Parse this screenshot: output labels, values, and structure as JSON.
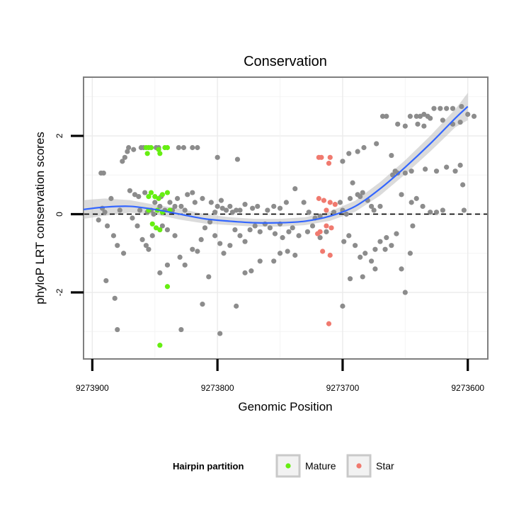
{
  "chart_data": {
    "type": "scatter",
    "title": "Conservation",
    "xlabel": "Genomic Position",
    "ylabel": "phyloP LRT conservation scores",
    "x_reversed": true,
    "xlim": [
      9273907,
      9273584
    ],
    "ylim": [
      -3.7,
      3.5
    ],
    "x_ticks": [
      9273900,
      9273800,
      9273700,
      9273600
    ],
    "x_tick_labels": [
      "9273900",
      "9273800",
      "9273700",
      "9273600"
    ],
    "y_ticks": [
      2,
      0,
      -2
    ],
    "y_tick_labels": [
      "2",
      "0",
      "-2"
    ],
    "grid": true,
    "reference_line": {
      "y": 0,
      "style": "dashed",
      "color": "#000000"
    },
    "legend": {
      "title": "Hairpin partition",
      "placement": "bottom",
      "entries": [
        {
          "label": "Mature",
          "color": "#66ee11"
        },
        {
          "label": "Star",
          "color": "#f07a6f"
        }
      ]
    },
    "colors": {
      "other": "#8c8c8c",
      "mature": "#66ee11",
      "star": "#f07a6f",
      "smooth_line": "#3366ff",
      "ribbon": "#bdbdbd"
    },
    "series": [
      {
        "group": "other",
        "points": [
          [
            9273893,
            1.05
          ],
          [
            9273891,
            1.05
          ],
          [
            9273892,
            0.15
          ],
          [
            9273890,
            0.05
          ],
          [
            9273895,
            -0.15
          ],
          [
            9273888,
            -0.3
          ],
          [
            9273883,
            -0.55
          ],
          [
            9273889,
            -1.7
          ],
          [
            9273882,
            -2.15
          ],
          [
            9273880,
            -2.95
          ],
          [
            9273885,
            0.4
          ],
          [
            9273878,
            0.1
          ],
          [
            9273880,
            -0.8
          ],
          [
            9273875,
            -1.0
          ],
          [
            9273876,
            1.35
          ],
          [
            9273874,
            1.45
          ],
          [
            9273872,
            1.6
          ],
          [
            9273871,
            1.7
          ],
          [
            9273867,
            1.65
          ],
          [
            9273861,
            1.7
          ],
          [
            9273859,
            1.7
          ],
          [
            9273855,
            1.7
          ],
          [
            9273849,
            1.7
          ],
          [
            9273847,
            1.7
          ],
          [
            9273831,
            1.7
          ],
          [
            9273827,
            1.7
          ],
          [
            9273820,
            1.7
          ],
          [
            9273816,
            1.7
          ],
          [
            9273870,
            0.6
          ],
          [
            9273866,
            0.5
          ],
          [
            9273863,
            0.45
          ],
          [
            9273858,
            0.55
          ],
          [
            9273862,
            0.1
          ],
          [
            9273856,
            0.05
          ],
          [
            9273853,
            0.1
          ],
          [
            9273851,
            0.0
          ],
          [
            9273850,
            0.3
          ],
          [
            9273846,
            0.2
          ],
          [
            9273845,
            0.45
          ],
          [
            9273842,
            0.1
          ],
          [
            9273838,
            0.3
          ],
          [
            9273836,
            0.1
          ],
          [
            9273834,
            0.2
          ],
          [
            9273832,
            0.4
          ],
          [
            9273829,
            0.2
          ],
          [
            9273826,
            0.1
          ],
          [
            9273824,
            0.5
          ],
          [
            9273820,
            0.55
          ],
          [
            9273818,
            0.3
          ],
          [
            9273812,
            0.4
          ],
          [
            9273805,
            0.3
          ],
          [
            9273800,
            0.2
          ],
          [
            9273797,
            0.35
          ],
          [
            9273793,
            0.1
          ],
          [
            9273790,
            0.2
          ],
          [
            9273785,
            0.1
          ],
          [
            9273778,
            0.25
          ],
          [
            9273772,
            0.15
          ],
          [
            9273768,
            0.2
          ],
          [
            9273760,
            0.1
          ],
          [
            9273755,
            0.2
          ],
          [
            9273750,
            0.15
          ],
          [
            9273745,
            0.3
          ],
          [
            9273738,
            0.65
          ],
          [
            9273731,
            0.3
          ],
          [
            9273727,
            0.05
          ],
          [
            9273722,
            -0.1
          ],
          [
            9273718,
            -0.05
          ],
          [
            9273868,
            -0.1
          ],
          [
            9273864,
            -0.3
          ],
          [
            9273860,
            -0.65
          ],
          [
            9273857,
            -0.8
          ],
          [
            9273855,
            -0.9
          ],
          [
            9273852,
            -0.55
          ],
          [
            9273844,
            -0.3
          ],
          [
            9273840,
            -0.4
          ],
          [
            9273834,
            -0.55
          ],
          [
            9273830,
            -1.1
          ],
          [
            9273826,
            -1.3
          ],
          [
            9273820,
            -0.9
          ],
          [
            9273816,
            -0.95
          ],
          [
            9273813,
            -0.65
          ],
          [
            9273810,
            -0.35
          ],
          [
            9273806,
            -0.2
          ],
          [
            9273802,
            -0.55
          ],
          [
            9273798,
            -0.75
          ],
          [
            9273795,
            -1.0
          ],
          [
            9273790,
            -0.8
          ],
          [
            9273786,
            -0.4
          ],
          [
            9273782,
            -0.55
          ],
          [
            9273778,
            -0.7
          ],
          [
            9273774,
            -0.4
          ],
          [
            9273770,
            -0.3
          ],
          [
            9273766,
            -0.45
          ],
          [
            9273762,
            -0.25
          ],
          [
            9273758,
            -0.35
          ],
          [
            9273754,
            -0.5
          ],
          [
            9273750,
            -0.25
          ],
          [
            9273748,
            -0.6
          ],
          [
            9273743,
            -0.45
          ],
          [
            9273740,
            -0.35
          ],
          [
            9273735,
            -0.55
          ],
          [
            9273728,
            -0.45
          ],
          [
            9273724,
            -0.3
          ],
          [
            9273718,
            -0.6
          ],
          [
            9273713,
            -0.45
          ],
          [
            9273846,
            -1.5
          ],
          [
            9273840,
            -1.3
          ],
          [
            9273829,
            -2.95
          ],
          [
            9273812,
            -2.3
          ],
          [
            9273807,
            -1.6
          ],
          [
            9273798,
            -3.05
          ],
          [
            9273785,
            -2.35
          ],
          [
            9273778,
            -1.5
          ],
          [
            9273773,
            -1.45
          ],
          [
            9273766,
            -1.2
          ],
          [
            9273755,
            -1.2
          ],
          [
            9273750,
            -1.0
          ],
          [
            9273744,
            -0.95
          ],
          [
            9273738,
            -1.05
          ],
          [
            9273802,
            0.05
          ],
          [
            9273796,
            0.15
          ],
          [
            9273788,
            0.05
          ],
          [
            9273782,
            0.1
          ],
          [
            9273800,
            1.45
          ],
          [
            9273784,
            1.4
          ],
          [
            9273707,
            0.05
          ],
          [
            9273702,
            0.3
          ],
          [
            9273700,
            0.1
          ],
          [
            9273697,
            0.0
          ],
          [
            9273694,
            0.4
          ],
          [
            9273692,
            0.8
          ],
          [
            9273688,
            0.5
          ],
          [
            9273686,
            0.45
          ],
          [
            9273684,
            0.55
          ],
          [
            9273680,
            0.35
          ],
          [
            9273677,
            0.2
          ],
          [
            9273670,
            0.2
          ],
          [
            9273675,
            0.1
          ],
          [
            9273699,
            -0.7
          ],
          [
            9273695,
            -0.55
          ],
          [
            9273690,
            -0.8
          ],
          [
            9273686,
            -1.1
          ],
          [
            9273682,
            -1.0
          ],
          [
            9273677,
            -1.2
          ],
          [
            9273674,
            -0.9
          ],
          [
            9273670,
            -0.7
          ],
          [
            9273666,
            -0.9
          ],
          [
            9273661,
            -0.8
          ],
          [
            9273657,
            -0.5
          ],
          [
            9273653,
            -1.4
          ],
          [
            9273650,
            -2.0
          ],
          [
            9273646,
            -1.0
          ],
          [
            9273644,
            -0.3
          ],
          [
            9273700,
            -2.35
          ],
          [
            9273694,
            -1.65
          ],
          [
            9273684,
            -1.6
          ],
          [
            9273674,
            -1.4
          ],
          [
            9273665,
            -0.6
          ],
          [
            9273700,
            1.35
          ],
          [
            9273695,
            1.55
          ],
          [
            9273688,
            1.6
          ],
          [
            9273683,
            1.7
          ],
          [
            9273673,
            1.8
          ],
          [
            9273661,
            1.5
          ],
          [
            9273658,
            1.1
          ],
          [
            9273653,
            0.5
          ],
          [
            9273645,
            0.3
          ],
          [
            9273641,
            0.4
          ],
          [
            9273636,
            0.2
          ],
          [
            9273630,
            0.05
          ],
          [
            9273625,
            0.05
          ],
          [
            9273620,
            0.1
          ],
          [
            9273668,
            2.5
          ],
          [
            9273665,
            2.5
          ],
          [
            9273656,
            2.3
          ],
          [
            9273650,
            2.25
          ],
          [
            9273646,
            2.5
          ],
          [
            9273641,
            2.5
          ],
          [
            9273638,
            2.5
          ],
          [
            9273635,
            2.55
          ],
          [
            9273632,
            2.5
          ],
          [
            9273627,
            2.7
          ],
          [
            9273622,
            2.7
          ],
          [
            9273617,
            2.7
          ],
          [
            9273612,
            2.7
          ],
          [
            9273605,
            2.75
          ],
          [
            9273600,
            2.55
          ],
          [
            9273595,
            2.5
          ],
          [
            9273640,
            2.3
          ],
          [
            9273635,
            2.25
          ],
          [
            9273612,
            2.3
          ],
          [
            9273606,
            2.35
          ],
          [
            9273620,
            2.4
          ],
          [
            9273630,
            2.45
          ],
          [
            9273660,
            1.0
          ],
          [
            9273656,
            1.05
          ],
          [
            9273650,
            1.05
          ],
          [
            9273645,
            1.1
          ],
          [
            9273634,
            1.15
          ],
          [
            9273625,
            1.1
          ],
          [
            9273617,
            1.2
          ],
          [
            9273610,
            1.1
          ],
          [
            9273606,
            1.25
          ],
          [
            9273604,
            0.75
          ],
          [
            9273603,
            0.1
          ]
        ]
      },
      {
        "group": "mature",
        "points": [
          [
            9273857,
            1.7
          ],
          [
            9273855,
            1.7
          ],
          [
            9273856,
            1.55
          ],
          [
            9273853,
            1.7
          ],
          [
            9273847,
            1.65
          ],
          [
            9273846,
            1.55
          ],
          [
            9273842,
            1.7
          ],
          [
            9273840,
            1.7
          ],
          [
            9273855,
            0.45
          ],
          [
            9273853,
            0.55
          ],
          [
            9273850,
            0.45
          ],
          [
            9273847,
            0.4
          ],
          [
            9273844,
            0.5
          ],
          [
            9273840,
            0.55
          ],
          [
            9273838,
            0.1
          ],
          [
            9273844,
            0.05
          ],
          [
            9273848,
            0.1
          ],
          [
            9273855,
            0.1
          ],
          [
            9273852,
            -0.25
          ],
          [
            9273849,
            -0.35
          ],
          [
            9273846,
            -0.4
          ],
          [
            9273840,
            -1.85
          ],
          [
            9273846,
            -3.35
          ]
        ]
      },
      {
        "group": "star",
        "points": [
          [
            9273719,
            1.45
          ],
          [
            9273717,
            1.45
          ],
          [
            9273710,
            1.45
          ],
          [
            9273711,
            1.3
          ],
          [
            9273719,
            0.4
          ],
          [
            9273715,
            0.35
          ],
          [
            9273710,
            0.3
          ],
          [
            9273706,
            0.25
          ],
          [
            9273713,
            0.1
          ],
          [
            9273718,
            -0.45
          ],
          [
            9273720,
            -0.5
          ],
          [
            9273713,
            -0.3
          ],
          [
            9273709,
            -0.35
          ],
          [
            9273716,
            -0.95
          ],
          [
            9273710,
            -1.05
          ],
          [
            9273711,
            -2.8
          ]
        ]
      }
    ],
    "smooth": {
      "x": [
        9273907,
        9273890,
        9273870,
        9273850,
        9273830,
        9273810,
        9273790,
        9273770,
        9273750,
        9273730,
        9273710,
        9273690,
        9273670,
        9273650,
        9273630,
        9273610,
        9273600
      ],
      "y": [
        0.12,
        0.18,
        0.2,
        0.12,
        0.0,
        -0.12,
        -0.18,
        -0.22,
        -0.22,
        -0.18,
        -0.05,
        0.2,
        0.65,
        1.2,
        1.8,
        2.45,
        2.75
      ],
      "lower": [
        -0.12,
        -0.04,
        0.04,
        0.0,
        -0.14,
        -0.24,
        -0.28,
        -0.32,
        -0.32,
        -0.28,
        -0.17,
        0.06,
        0.48,
        1.02,
        1.6,
        2.22,
        2.4
      ],
      "upper": [
        0.36,
        0.4,
        0.36,
        0.24,
        0.14,
        0.0,
        -0.08,
        -0.12,
        -0.12,
        -0.08,
        0.07,
        0.34,
        0.82,
        1.38,
        2.0,
        2.68,
        3.1
      ]
    }
  }
}
